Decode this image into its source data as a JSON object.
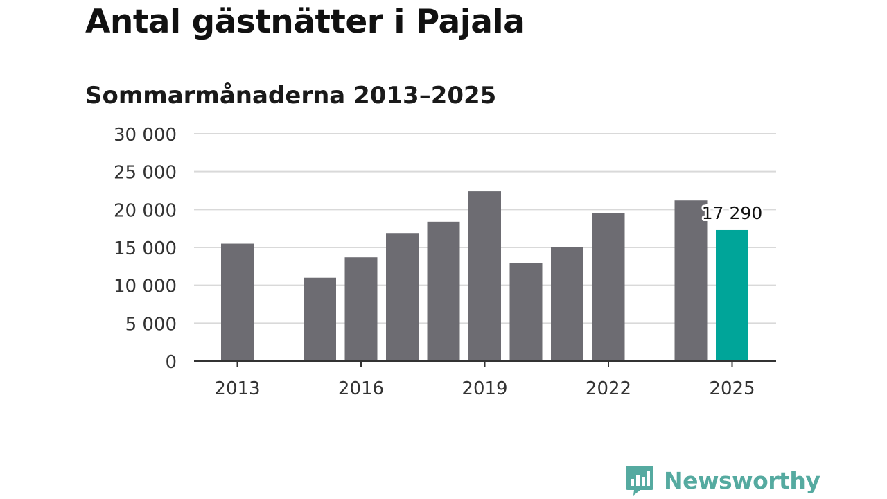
{
  "title": "Antal gästnätter i Pajala",
  "subtitle": "Sommarmånaderna 2013–2025",
  "brand": {
    "name": "Newsworthy",
    "icon": "newsworthy-logo-icon",
    "color": "#55aaa0"
  },
  "colors": {
    "bar": "#6d6c72",
    "highlight": "#00a599",
    "grid": "#d9d9d9",
    "axis": "#333333"
  },
  "chart_data": {
    "type": "bar",
    "categories": [
      "2013",
      "2014",
      "2015",
      "2016",
      "2017",
      "2018",
      "2019",
      "2020",
      "2021",
      "2022",
      "2023",
      "2024",
      "2025"
    ],
    "values": [
      15500,
      null,
      11000,
      13700,
      16900,
      18400,
      22400,
      12900,
      15000,
      19500,
      null,
      21200,
      17290
    ],
    "highlight_index": 12,
    "data_label": {
      "index": 12,
      "text": "17 290"
    },
    "x_tick_labels": [
      "2013",
      "2016",
      "2019",
      "2022",
      "2025"
    ],
    "y_ticks": [
      0,
      5000,
      10000,
      15000,
      20000,
      25000,
      30000
    ],
    "y_tick_labels": [
      "0",
      "5 000",
      "10 000",
      "15 000",
      "20 000",
      "25 000",
      "30 000"
    ],
    "ylim": [
      0,
      30000
    ],
    "grid": true,
    "xlabel": "",
    "ylabel": ""
  }
}
